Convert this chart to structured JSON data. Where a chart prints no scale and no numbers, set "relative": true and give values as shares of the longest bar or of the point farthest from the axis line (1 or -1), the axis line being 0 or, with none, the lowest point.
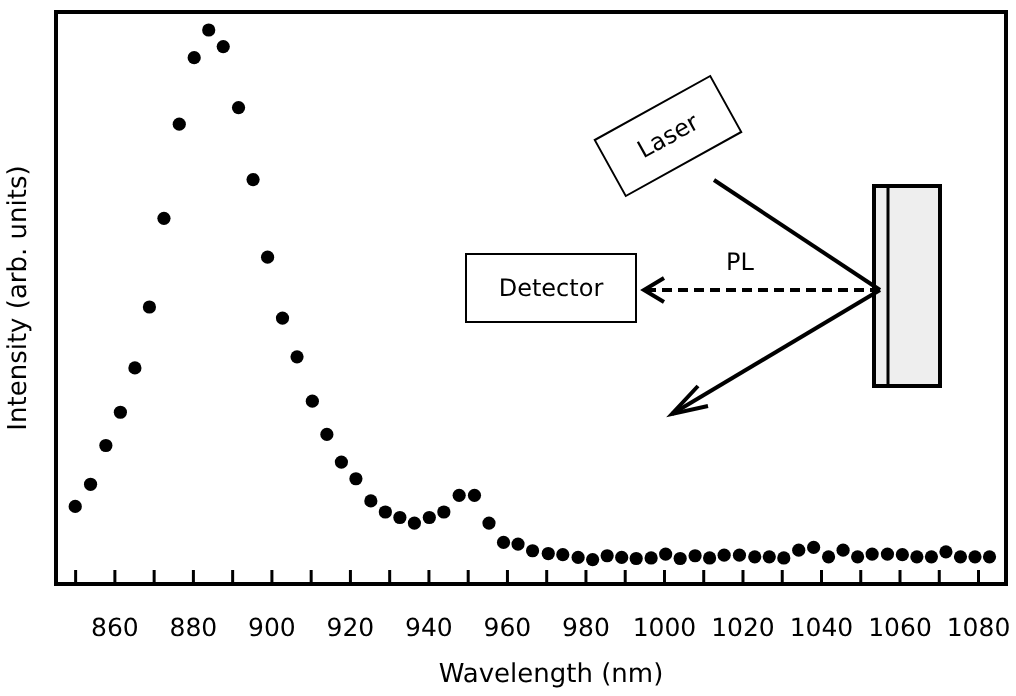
{
  "chart_data": {
    "type": "scatter",
    "xlabel": "Wavelength (nm)",
    "ylabel": "Intensity (arb. units)",
    "relative": true,
    "marker": "circle",
    "grid": false,
    "color": "#000000",
    "xlim": [
      845,
      1087
    ],
    "xticks": [
      {
        "value": 850,
        "label": null
      },
      860,
      {
        "value": 870,
        "label": null
      },
      880,
      {
        "value": 890,
        "label": null
      },
      900,
      {
        "value": 910,
        "label": null
      },
      920,
      {
        "value": 930,
        "label": null
      },
      940,
      {
        "value": 950,
        "label": null
      },
      960,
      {
        "value": 970,
        "label": null
      },
      980,
      {
        "value": 990,
        "label": null
      },
      1000,
      {
        "value": 1010,
        "label": null
      },
      1020,
      {
        "value": 1030,
        "label": null
      },
      1040,
      {
        "value": 1050,
        "label": null
      },
      1060,
      {
        "value": 1070,
        "label": null
      },
      1080
    ],
    "x": [
      849.9,
      853.8,
      857.7,
      861.4,
      865.1,
      868.8,
      872.5,
      876.4,
      880.2,
      883.9,
      887.6,
      891.5,
      895.2,
      898.9,
      902.7,
      906.4,
      910.3,
      914.0,
      917.7,
      921.4,
      925.2,
      928.9,
      932.6,
      936.3,
      940.1,
      943.8,
      947.7,
      951.6,
      955.3,
      959.0,
      962.7,
      966.4,
      970.4,
      974.1,
      978.0,
      981.7,
      985.4,
      989.1,
      992.8,
      996.6,
      1000.3,
      1004.0,
      1007.8,
      1011.5,
      1015.2,
      1019.1,
      1023.0,
      1026.7,
      1030.4,
      1034.2,
      1038.0,
      1041.8,
      1045.5,
      1049.2,
      1052.9,
      1056.8,
      1060.6,
      1064.3,
      1068.0,
      1071.7,
      1075.4,
      1079.1,
      1082.8
    ],
    "values": [
      0.14,
      0.18,
      0.25,
      0.31,
      0.39,
      0.5,
      0.66,
      0.83,
      0.95,
      1.0,
      0.97,
      0.86,
      0.73,
      0.59,
      0.48,
      0.41,
      0.33,
      0.27,
      0.22,
      0.19,
      0.15,
      0.13,
      0.12,
      0.11,
      0.12,
      0.13,
      0.16,
      0.16,
      0.11,
      0.075,
      0.072,
      0.06,
      0.055,
      0.053,
      0.048,
      0.044,
      0.051,
      0.048,
      0.046,
      0.047,
      0.054,
      0.046,
      0.051,
      0.047,
      0.052,
      0.052,
      0.049,
      0.049,
      0.047,
      0.061,
      0.066,
      0.049,
      0.061,
      0.049,
      0.054,
      0.054,
      0.053,
      0.049,
      0.049,
      0.058,
      0.049,
      0.049,
      0.049
    ],
    "annotations": [
      "Laser",
      "Detector",
      "PL"
    ]
  }
}
